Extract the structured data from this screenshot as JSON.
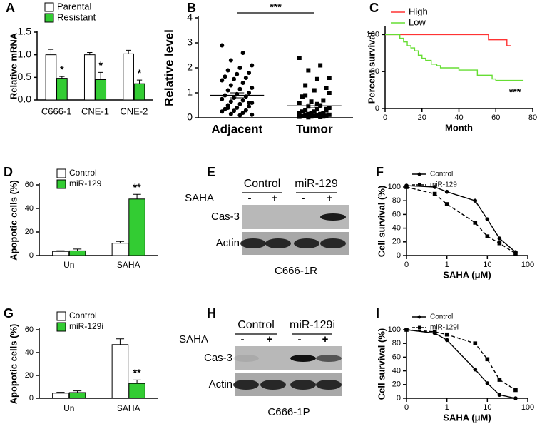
{
  "chart_data": [
    {
      "panel": "A",
      "type": "bar",
      "ylabel": "Relative mRNA",
      "categories": [
        "C666-1",
        "CNE-1",
        "CNE-2"
      ],
      "series": [
        {
          "name": "Parental",
          "color": "#ffffff",
          "values": [
            1.0,
            1.0,
            1.02
          ],
          "errors": [
            0.12,
            0.05,
            0.08
          ]
        },
        {
          "name": "Resistant",
          "color": "#33cc33",
          "values": [
            0.48,
            0.45,
            0.36
          ],
          "errors": [
            0.04,
            0.16,
            0.08
          ]
        }
      ],
      "ylim": [
        0,
        1.5
      ],
      "yticks": [
        {
          "value": 0,
          "label": "0.0"
        },
        {
          "value": 0.5,
          "label": "0.5"
        },
        {
          "value": 1,
          "label": "1.0"
        },
        {
          "value": 1.5,
          "label": "1.5"
        }
      ],
      "annotations": [
        "*",
        "*",
        "*"
      ]
    },
    {
      "panel": "B",
      "type": "strip",
      "ylabel": "Relative level",
      "categories": [
        "Adjacent",
        "Tumor"
      ],
      "values": [
        [
          2.9,
          2.6,
          2.3,
          2.1,
          2.0,
          1.9,
          1.8,
          1.75,
          1.65,
          1.6,
          1.55,
          1.5,
          1.4,
          1.3,
          1.2,
          1.15,
          1.1,
          1.0,
          0.95,
          0.9,
          0.85,
          0.8,
          0.75,
          0.7,
          0.65,
          0.6,
          0.55,
          0.5,
          0.45,
          0.4,
          0.35,
          0.3,
          0.28,
          0.25,
          0.2,
          0.15,
          0.12,
          0.1,
          0.4,
          0.6
        ],
        [
          2.4,
          2.1,
          1.9,
          1.6,
          1.55,
          1.3,
          1.2,
          1.1,
          0.85,
          0.7,
          0.65,
          0.6,
          0.5,
          0.45,
          0.4,
          0.35,
          0.3,
          0.3,
          0.25,
          0.25,
          0.2,
          0.2,
          0.18,
          0.15,
          0.15,
          0.12,
          0.1,
          0.1,
          0.08,
          0.08,
          0.06,
          0.05,
          0.05,
          0.04,
          0.03,
          0.02,
          1.0,
          0.55,
          0.9,
          0.35
        ]
      ],
      "means": [
        0.9,
        0.48
      ],
      "errors": [
        0.1,
        0.08
      ],
      "ylim": [
        0,
        4
      ],
      "yticks": [
        0,
        1,
        2,
        3,
        4
      ],
      "annotations": [
        "***"
      ]
    },
    {
      "panel": "C",
      "type": "line",
      "step": true,
      "xlabel": "Month",
      "ylabel": "Percent survival",
      "series": [
        {
          "name": "High",
          "color": "#ff3333",
          "x": [
            0,
            55,
            56,
            65,
            66,
            68
          ],
          "values": [
            100,
            100,
            93,
            93,
            85,
            85
          ]
        },
        {
          "name": "Low",
          "color": "#66dd33",
          "x": [
            0,
            5,
            8,
            10,
            12,
            14,
            16,
            18,
            20,
            22,
            25,
            28,
            30,
            35,
            40,
            50,
            55,
            58,
            60,
            75
          ],
          "values": [
            100,
            100,
            95,
            90,
            85,
            82,
            78,
            72,
            68,
            65,
            60,
            58,
            55,
            55,
            52,
            45,
            45,
            40,
            38,
            38
          ]
        }
      ],
      "xlim": [
        0,
        80
      ],
      "xticks": [
        0,
        20,
        40,
        60,
        80
      ],
      "ylim": [
        0,
        110
      ],
      "yticks": [
        0,
        50,
        100
      ],
      "annotations": [
        "***"
      ]
    },
    {
      "panel": "D",
      "type": "bar",
      "ylabel": "Apopotic cells (%)",
      "categories": [
        "Un",
        "SAHA"
      ],
      "series": [
        {
          "name": "Control",
          "color": "#ffffff",
          "values": [
            3.5,
            10.5
          ],
          "errors": [
            0.6,
            1.5
          ]
        },
        {
          "name": "miR-129",
          "color": "#33cc33",
          "values": [
            4,
            48
          ],
          "errors": [
            1.5,
            4
          ]
        }
      ],
      "ylim": [
        0,
        60
      ],
      "yticks": [
        0,
        20,
        40,
        60
      ],
      "annotations": [
        "**"
      ]
    },
    {
      "panel": "F",
      "type": "line",
      "xscale": "log",
      "xlabel": "SAHA (μM)",
      "ylabel": "Cell survival (%)",
      "x": [
        0.1,
        0.5,
        1,
        5,
        10,
        20,
        50
      ],
      "series": [
        {
          "name": "Control",
          "color": "#000000",
          "marker": "circle",
          "dash": false,
          "values": [
            102,
            100,
            93,
            80,
            53,
            25,
            5
          ]
        },
        {
          "name": "miR-129",
          "color": "#000000",
          "marker": "square",
          "dash": true,
          "values": [
            100,
            90,
            75,
            48,
            28,
            18,
            3
          ]
        }
      ],
      "xlim": [
        0.1,
        100
      ],
      "xticks": [
        {
          "value": 0.1,
          "label": "0"
        },
        1,
        10,
        100
      ],
      "ylim": [
        0,
        100
      ],
      "yticks": [
        0,
        20,
        40,
        60,
        80,
        100
      ]
    },
    {
      "panel": "G",
      "type": "bar",
      "ylabel": "Apopotic cells (%)",
      "categories": [
        "Un",
        "SAHA"
      ],
      "series": [
        {
          "name": "Control",
          "color": "#ffffff",
          "values": [
            4.5,
            47
          ],
          "errors": [
            0.7,
            5
          ]
        },
        {
          "name": "miR-129i",
          "color": "#33cc33",
          "values": [
            5,
            13
          ],
          "errors": [
            1.5,
            3
          ]
        }
      ],
      "ylim": [
        0,
        60
      ],
      "yticks": [
        0,
        20,
        40,
        60
      ],
      "annotations": [
        "**"
      ]
    },
    {
      "panel": "I",
      "type": "line",
      "xscale": "log",
      "xlabel": "SAHA (μM)",
      "ylabel": "Cell survival (%)",
      "x": [
        0.1,
        0.5,
        1,
        5,
        10,
        20,
        50
      ],
      "series": [
        {
          "name": "Control",
          "color": "#000000",
          "marker": "circle",
          "dash": false,
          "values": [
            100,
            95,
            85,
            42,
            22,
            5,
            0
          ]
        },
        {
          "name": "miR-129i",
          "color": "#000000",
          "marker": "square",
          "dash": true,
          "values": [
            100,
            97,
            93,
            80,
            57,
            27,
            12
          ]
        }
      ],
      "xlim": [
        0.1,
        100
      ],
      "xticks": [
        {
          "value": 0.1,
          "label": "0"
        },
        1,
        10,
        100
      ],
      "ylim": [
        0,
        100
      ],
      "yticks": [
        0,
        20,
        40,
        60,
        80,
        100
      ]
    }
  ],
  "blots": [
    {
      "panel": "E",
      "groups": [
        "Control",
        "miR-129"
      ],
      "treatment": "SAHA",
      "signs": [
        "-",
        "+",
        "-",
        "+"
      ],
      "rows": [
        "Cas-3",
        "Actin"
      ],
      "cell_line": "C666-1R"
    },
    {
      "panel": "H",
      "groups": [
        "Control",
        "miR-129i"
      ],
      "treatment": "SAHA",
      "signs": [
        "-",
        "+",
        "-",
        "+"
      ],
      "rows": [
        "Cas-3",
        "Actin"
      ],
      "cell_line": "C666-1P"
    }
  ]
}
